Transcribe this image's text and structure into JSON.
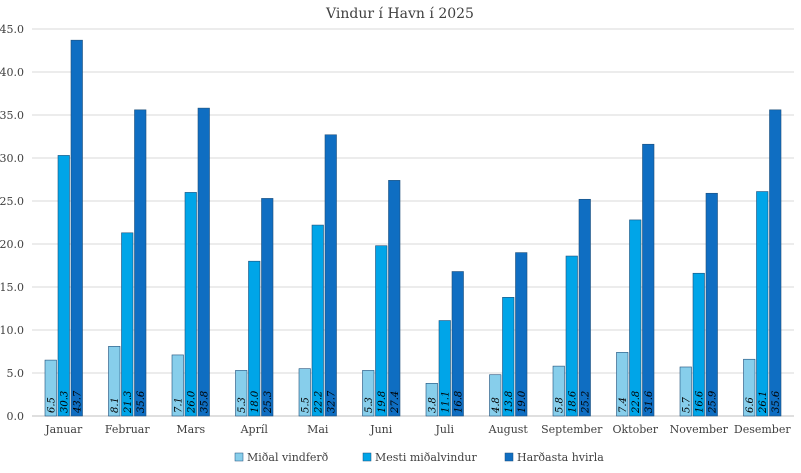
{
  "chart_data": {
    "type": "bar",
    "title": "Vindur í Havn í 2025",
    "categories": [
      "Januar",
      "Februar",
      "Mars",
      "Apríl",
      "Mai",
      "Juni",
      "Juli",
      "August",
      "September",
      "Oktober",
      "November",
      "Desember"
    ],
    "series": [
      {
        "name": "Miðal vindferð",
        "color": "#87CEEB",
        "values": [
          6.5,
          8.1,
          7.1,
          5.3,
          5.5,
          5.3,
          3.8,
          4.8,
          5.8,
          7.4,
          5.7,
          6.6
        ]
      },
      {
        "name": "Mesti miðalvindur",
        "color": "#00A5E8",
        "values": [
          30.3,
          21.3,
          26.0,
          18.0,
          22.2,
          19.8,
          11.1,
          13.8,
          18.6,
          22.8,
          16.6,
          26.1
        ]
      },
      {
        "name": "Harðasta hvirla",
        "color": "#0F6EC2",
        "values": [
          43.7,
          35.6,
          35.8,
          25.3,
          32.7,
          27.4,
          16.8,
          19.0,
          25.2,
          31.6,
          25.9,
          35.6
        ]
      }
    ],
    "ylim": [
      0,
      45
    ],
    "yticks": [
      "0.0",
      "5.0",
      "10.0",
      "15.0",
      "20.0",
      "25.0",
      "30.0",
      "35.0",
      "40.0",
      "45.0"
    ],
    "xlabel": "",
    "ylabel": "",
    "grid": true,
    "legend": "bottom",
    "data_labels": true
  }
}
